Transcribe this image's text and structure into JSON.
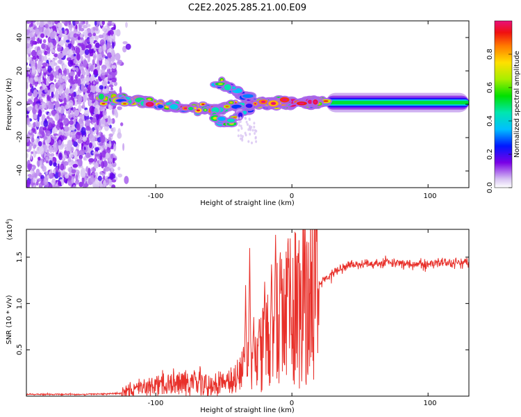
{
  "title": "C2E2.2025.285.21.00.E09",
  "chart_data": [
    {
      "type": "heatmap",
      "xlabel": "Height of straight line (km)",
      "ylabel": "Frequency (Hz)",
      "xlim": [
        -195,
        130
      ],
      "ylim": [
        -50,
        50
      ],
      "xticks": [
        -100,
        0,
        100
      ],
      "xtick_labels": [
        "-100",
        "0",
        "100"
      ],
      "yticks": [
        -40,
        -20,
        0,
        20,
        40
      ],
      "ytick_labels": [
        "-40",
        "-20",
        "0",
        "20",
        "40"
      ],
      "colorbar": {
        "label": "Normalized spectral amplitude",
        "range": [
          0,
          1
        ],
        "ticks": [
          0.0,
          0.2,
          0.4,
          0.6,
          0.8
        ],
        "tick_labels": [
          "0.0",
          "0.2",
          "0.4",
          "0.6",
          "0.8"
        ]
      },
      "features": [
        {
          "name": "noise-region",
          "x_range": [
            -195,
            -130
          ],
          "y_range": [
            -50,
            50
          ],
          "amplitude": 0.15
        },
        {
          "name": "signal-track",
          "points": [
            [
              -140,
              4
            ],
            [
              -120,
              3
            ],
            [
              -100,
              0
            ],
            [
              -80,
              -2
            ],
            [
              -60,
              -3
            ],
            [
              -40,
              -1
            ],
            [
              -20,
              1
            ],
            [
              0,
              1
            ],
            [
              30,
              1
            ],
            [
              60,
              1
            ],
            [
              90,
              1
            ],
            [
              130,
              1
            ]
          ],
          "amplitude": 0.7
        },
        {
          "name": "upper-branch",
          "points": [
            [
              -55,
              13
            ],
            [
              -45,
              10
            ],
            [
              -38,
              6
            ],
            [
              -30,
              3
            ]
          ],
          "amplitude": 0.35
        },
        {
          "name": "lower-branch",
          "points": [
            [
              -58,
              -8
            ],
            [
              -48,
              -12
            ],
            [
              -38,
              -6
            ],
            [
              -30,
              -3
            ]
          ],
          "amplitude": 0.3
        }
      ]
    },
    {
      "type": "line",
      "xlabel": "Height of straight line (km)",
      "ylabel": "SNR (10 * v/v)",
      "y_multiplier": "(x10^4)",
      "xlim": [
        -195,
        130
      ],
      "ylim": [
        0,
        1.8
      ],
      "xticks": [
        -100,
        0,
        100
      ],
      "xtick_labels": [
        "-100",
        "0",
        "100"
      ],
      "yticks": [
        0.5,
        1.0,
        1.5
      ],
      "ytick_labels": [
        "0.5",
        "1.0",
        "1.5"
      ],
      "color": "#e8302a",
      "x": [
        -195,
        -150,
        -125,
        -115,
        -100,
        -85,
        -70,
        -55,
        -45,
        -38,
        -33,
        -28,
        -23,
        -18,
        -12,
        -6,
        0,
        5,
        10,
        15,
        20,
        30,
        40,
        55,
        70,
        85,
        100,
        115,
        130
      ],
      "y": [
        0.02,
        0.02,
        0.03,
        0.07,
        0.1,
        0.14,
        0.13,
        0.11,
        0.13,
        0.2,
        0.35,
        0.3,
        0.42,
        0.55,
        0.7,
        0.8,
        0.85,
        0.9,
        0.98,
        1.08,
        1.22,
        1.33,
        1.4,
        1.43,
        1.44,
        1.43,
        1.42,
        1.43,
        1.44
      ],
      "spikes": [
        [
          -34,
          1.15
        ],
        [
          -31,
          1.55
        ],
        [
          -28,
          0.8
        ],
        [
          -24,
          0.9
        ],
        [
          -20,
          1.25
        ],
        [
          -15,
          1.42
        ],
        [
          -12,
          1.78
        ],
        [
          -8,
          1.2
        ],
        [
          -3,
          1.15
        ]
      ]
    }
  ]
}
